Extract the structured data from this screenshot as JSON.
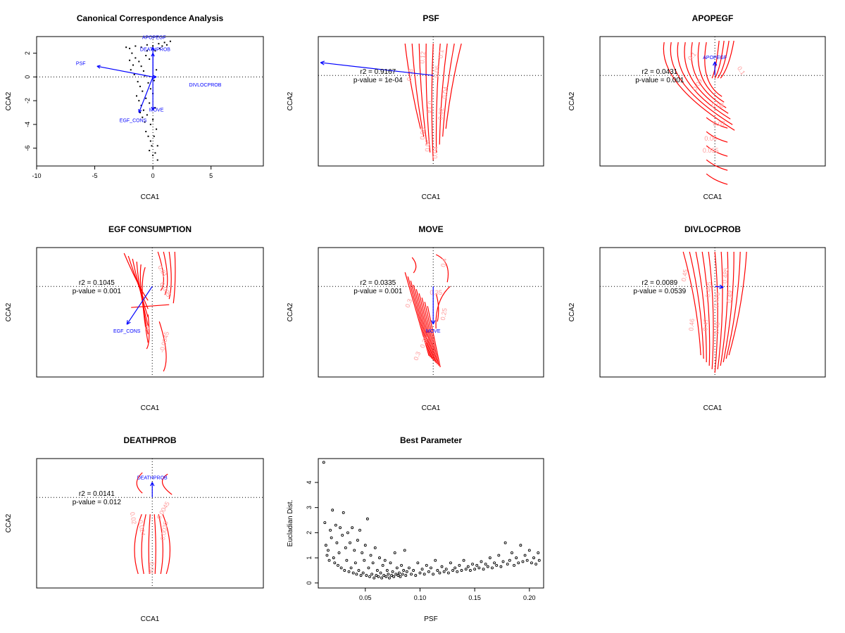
{
  "colors": {
    "vector": "#0000ff",
    "contour": "#ff0000",
    "contour_label": "#ff9999",
    "points": "#000000",
    "axes": "#000000"
  },
  "chart_data": [
    {
      "id": "cca",
      "type": "scatter",
      "title": "Canonical Correspondence Analysis",
      "xlabel": "CCA1",
      "ylabel": "CCA2",
      "xlim": [
        -10,
        9.5
      ],
      "ylim": [
        -7.5,
        3.4
      ],
      "xticks": [
        -10,
        -5,
        0,
        5
      ],
      "yticks": [
        -6,
        -4,
        -2,
        0,
        2
      ],
      "ref_lines": {
        "x": 0,
        "y": 0
      },
      "points": [
        [
          -2.3,
          2.5
        ],
        [
          -2.0,
          2.4
        ],
        [
          -1.5,
          2.6
        ],
        [
          -1.0,
          2.5
        ],
        [
          -0.5,
          2.7
        ],
        [
          0.0,
          2.6
        ],
        [
          0.5,
          2.8
        ],
        [
          1.0,
          2.9
        ],
        [
          1.5,
          3.0
        ],
        [
          -1.8,
          2.0
        ],
        [
          -1.5,
          1.6
        ],
        [
          -1.2,
          1.3
        ],
        [
          -1.0,
          0.9
        ],
        [
          -0.8,
          0.5
        ],
        [
          -0.6,
          1.8
        ],
        [
          -0.3,
          1.5
        ],
        [
          0.2,
          2.2
        ],
        [
          0.6,
          2.4
        ],
        [
          -1.6,
          0.2
        ],
        [
          -1.3,
          -0.4
        ],
        [
          -1.1,
          -0.8
        ],
        [
          -0.9,
          -1.2
        ],
        [
          -0.7,
          0.1
        ],
        [
          -0.4,
          -0.5
        ],
        [
          -0.2,
          -1.0
        ],
        [
          0.1,
          -0.3
        ],
        [
          0.3,
          0.6
        ],
        [
          -1.4,
          -1.6
        ],
        [
          -1.2,
          -2.0
        ],
        [
          -1.0,
          -2.4
        ],
        [
          -0.8,
          -2.8
        ],
        [
          -0.6,
          -1.8
        ],
        [
          -0.3,
          -2.2
        ],
        [
          0.0,
          -1.4
        ],
        [
          0.2,
          -2.6
        ],
        [
          -1.1,
          -3.0
        ],
        [
          -0.9,
          -3.4
        ],
        [
          -0.7,
          -3.8
        ],
        [
          -0.5,
          -3.2
        ],
        [
          -0.2,
          -4.0
        ],
        [
          0.0,
          -3.6
        ],
        [
          0.3,
          -4.4
        ],
        [
          -0.6,
          -4.6
        ],
        [
          -0.4,
          -5.0
        ],
        [
          -0.2,
          -5.4
        ],
        [
          0.1,
          -5.0
        ],
        [
          0.4,
          -5.8
        ],
        [
          -0.3,
          -6.2
        ],
        [
          0.0,
          -6.6
        ],
        [
          0.2,
          -6.4
        ],
        [
          0.4,
          -7.0
        ],
        [
          -0.1,
          -5.8
        ],
        [
          -1.7,
          1.0
        ],
        [
          -2.0,
          1.4
        ],
        [
          -1.9,
          0.6
        ],
        [
          -0.5,
          2.2
        ],
        [
          0.8,
          2.6
        ],
        [
          1.2,
          2.7
        ]
      ],
      "vectors": [
        {
          "label": "APOPEGF",
          "x": 0.0,
          "y": 2.5
        },
        {
          "label": "PSF",
          "x": -4.8,
          "y": 0.9
        },
        {
          "label": "DIVLOCPROB",
          "x": 0.3,
          "y": 0.0
        },
        {
          "label": "EGF_CONS",
          "x": -1.2,
          "y": -3.0
        },
        {
          "label": "MOVE",
          "x": 0.0,
          "y": -2.8
        },
        {
          "label": "DEATHPROB",
          "x": 0.0,
          "y": 2.0
        }
      ],
      "vector_label_positions": {
        "APOPEGF": [
          0.1,
          3.2
        ],
        "PSF": [
          -6.2,
          1.0
        ],
        "DIVLOCPROB": [
          4.5,
          -0.8
        ],
        "EGF_CONS": [
          -1.7,
          -3.8
        ],
        "MOVE": [
          0.3,
          -2.9
        ],
        "DEATHPROB": [
          0.2,
          2.2
        ]
      }
    },
    {
      "id": "psf",
      "type": "contour",
      "title": "PSF",
      "xlabel": "CCA1",
      "ylabel": "CCA2",
      "r2": "r2 = 0.9167",
      "pvalue": "p-value = 1e-04",
      "vector": {
        "x": -5.0,
        "y": 0.95
      },
      "contour_labels": [
        "0.08",
        "0.12",
        "0.1",
        "0.06",
        "0.04",
        "0.02",
        "0.14",
        "0.08",
        "0.06",
        "0.04"
      ]
    },
    {
      "id": "apopegf",
      "type": "contour",
      "title": "APOPEGF",
      "xlabel": "CCA1",
      "ylabel": "CCA2",
      "r2": "r2 = 0.0431",
      "pvalue": "p-value = 0.001",
      "vector": {
        "x": 0.0,
        "y": 1.8,
        "label": "APOPEGF"
      },
      "contour_labels": [
        "0.1",
        "0.1",
        "0.09",
        "0.08",
        "0.07",
        "0.06",
        "0.055"
      ]
    },
    {
      "id": "egf",
      "type": "contour",
      "title": "EGF CONSUMPTION",
      "xlabel": "CCA1",
      "ylabel": "CCA2",
      "r2": "r2 = 0.1045",
      "pvalue": "p-value = 0.001",
      "vector": {
        "x": -1.2,
        "y": -3.0,
        "label": "EGF_CONS"
      },
      "contour_labels": [
        "0.01",
        "0.005",
        "0",
        "-0.0045"
      ]
    },
    {
      "id": "move",
      "type": "contour",
      "title": "MOVE",
      "xlabel": "CCA1",
      "ylabel": "CCA2",
      "r2": "r2 = 0.0335",
      "pvalue": "p-value = 0.001",
      "vector": {
        "x": 0.0,
        "y": -2.8,
        "label": "MOVE"
      },
      "contour_labels": [
        "0.4",
        "0.35",
        "0.3",
        "0.25",
        "0.35",
        "0.3"
      ]
    },
    {
      "id": "divloc",
      "type": "contour",
      "title": "DIVLOCPROB",
      "xlabel": "CCA1",
      "ylabel": "CCA2",
      "r2": "r2 = 0.0089",
      "pvalue": "p-value = 0.0539",
      "vector": {
        "x": 0.6,
        "y": -0.1
      },
      "contour_labels": [
        "0.45",
        "0.465",
        "0.475",
        "0.485",
        "0.49",
        "0.46",
        "0.47",
        "0.48"
      ]
    },
    {
      "id": "death",
      "type": "contour",
      "title": "DEATHPROB",
      "xlabel": "CCA1",
      "ylabel": "CCA2",
      "r2": "r2 = 0.0141",
      "pvalue": "p-value = 0.012",
      "vector": {
        "x": 0.0,
        "y": 2.0,
        "label": "DEATHPROB"
      },
      "contour_labels": [
        "0.02",
        "0.024",
        "0.0045",
        "0.0035",
        "0.04"
      ]
    },
    {
      "id": "best",
      "type": "scatter",
      "title": "Best Parameter",
      "xlabel": "PSF",
      "ylabel": "Eucladian Dist.",
      "xlim": [
        0.007,
        0.213
      ],
      "ylim": [
        -0.2,
        4.95
      ],
      "xticks": [
        0.05,
        0.1,
        0.15,
        0.2
      ],
      "xtick_labels": [
        "0.05",
        "0.10",
        "0.15",
        "0.20"
      ],
      "yticks": [
        0,
        1,
        2,
        3,
        4
      ],
      "points": [
        [
          0.012,
          4.8
        ],
        [
          0.013,
          2.4
        ],
        [
          0.014,
          1.5
        ],
        [
          0.015,
          1.1
        ],
        [
          0.016,
          1.3
        ],
        [
          0.017,
          0.9
        ],
        [
          0.018,
          2.1
        ],
        [
          0.019,
          1.8
        ],
        [
          0.02,
          2.9
        ],
        [
          0.021,
          1.0
        ],
        [
          0.022,
          0.8
        ],
        [
          0.023,
          2.3
        ],
        [
          0.024,
          1.6
        ],
        [
          0.025,
          0.7
        ],
        [
          0.026,
          1.2
        ],
        [
          0.027,
          2.2
        ],
        [
          0.028,
          0.6
        ],
        [
          0.029,
          1.9
        ],
        [
          0.03,
          2.8
        ],
        [
          0.031,
          0.5
        ],
        [
          0.032,
          1.4
        ],
        [
          0.033,
          0.9
        ],
        [
          0.034,
          2.0
        ],
        [
          0.035,
          0.45
        ],
        [
          0.036,
          1.6
        ],
        [
          0.037,
          0.6
        ],
        [
          0.038,
          2.2
        ],
        [
          0.039,
          0.4
        ],
        [
          0.04,
          1.3
        ],
        [
          0.041,
          0.8
        ],
        [
          0.042,
          0.35
        ],
        [
          0.043,
          1.7
        ],
        [
          0.044,
          0.5
        ],
        [
          0.045,
          2.1
        ],
        [
          0.046,
          0.3
        ],
        [
          0.047,
          1.2
        ],
        [
          0.048,
          0.4
        ],
        [
          0.049,
          0.9
        ],
        [
          0.05,
          1.5
        ],
        [
          0.051,
          0.3
        ],
        [
          0.052,
          2.55
        ],
        [
          0.053,
          0.6
        ],
        [
          0.054,
          0.25
        ],
        [
          0.055,
          1.1
        ],
        [
          0.056,
          0.35
        ],
        [
          0.057,
          0.8
        ],
        [
          0.058,
          0.2
        ],
        [
          0.059,
          1.4
        ],
        [
          0.06,
          0.3
        ],
        [
          0.061,
          0.5
        ],
        [
          0.062,
          0.25
        ],
        [
          0.063,
          1.0
        ],
        [
          0.064,
          0.4
        ],
        [
          0.065,
          0.2
        ],
        [
          0.066,
          0.7
        ],
        [
          0.067,
          0.3
        ],
        [
          0.068,
          0.9
        ],
        [
          0.069,
          0.25
        ],
        [
          0.07,
          0.5
        ],
        [
          0.071,
          0.35
        ],
        [
          0.072,
          0.2
        ],
        [
          0.073,
          0.8
        ],
        [
          0.074,
          0.3
        ],
        [
          0.075,
          0.45
        ],
        [
          0.076,
          0.25
        ],
        [
          0.077,
          1.2
        ],
        [
          0.078,
          0.35
        ],
        [
          0.079,
          0.6
        ],
        [
          0.08,
          0.3
        ],
        [
          0.081,
          0.4
        ],
        [
          0.082,
          0.25
        ],
        [
          0.083,
          0.7
        ],
        [
          0.084,
          0.35
        ],
        [
          0.085,
          0.5
        ],
        [
          0.086,
          1.3
        ],
        [
          0.087,
          0.3
        ],
        [
          0.088,
          0.45
        ],
        [
          0.09,
          0.6
        ],
        [
          0.092,
          0.35
        ],
        [
          0.094,
          0.5
        ],
        [
          0.096,
          0.3
        ],
        [
          0.098,
          0.8
        ],
        [
          0.1,
          0.4
        ],
        [
          0.102,
          0.55
        ],
        [
          0.104,
          0.35
        ],
        [
          0.106,
          0.7
        ],
        [
          0.108,
          0.45
        ],
        [
          0.11,
          0.6
        ],
        [
          0.112,
          0.35
        ],
        [
          0.114,
          0.9
        ],
        [
          0.116,
          0.5
        ],
        [
          0.118,
          0.4
        ],
        [
          0.12,
          0.65
        ],
        [
          0.122,
          0.45
        ],
        [
          0.124,
          0.55
        ],
        [
          0.126,
          0.4
        ],
        [
          0.128,
          0.8
        ],
        [
          0.13,
          0.5
        ],
        [
          0.132,
          0.6
        ],
        [
          0.134,
          0.45
        ],
        [
          0.136,
          0.7
        ],
        [
          0.138,
          0.5
        ],
        [
          0.14,
          0.9
        ],
        [
          0.142,
          0.55
        ],
        [
          0.144,
          0.65
        ],
        [
          0.146,
          0.5
        ],
        [
          0.148,
          0.75
        ],
        [
          0.15,
          0.55
        ],
        [
          0.152,
          0.7
        ],
        [
          0.154,
          0.6
        ],
        [
          0.156,
          0.85
        ],
        [
          0.158,
          0.55
        ],
        [
          0.16,
          0.75
        ],
        [
          0.162,
          0.65
        ],
        [
          0.164,
          1.0
        ],
        [
          0.166,
          0.6
        ],
        [
          0.168,
          0.8
        ],
        [
          0.17,
          0.7
        ],
        [
          0.172,
          1.1
        ],
        [
          0.174,
          0.65
        ],
        [
          0.176,
          0.85
        ],
        [
          0.178,
          1.6
        ],
        [
          0.18,
          0.75
        ],
        [
          0.182,
          0.9
        ],
        [
          0.184,
          1.2
        ],
        [
          0.186,
          0.7
        ],
        [
          0.188,
          1.0
        ],
        [
          0.19,
          0.8
        ],
        [
          0.192,
          1.5
        ],
        [
          0.194,
          0.85
        ],
        [
          0.196,
          1.1
        ],
        [
          0.198,
          0.9
        ],
        [
          0.2,
          1.3
        ],
        [
          0.202,
          0.8
        ],
        [
          0.204,
          1.0
        ],
        [
          0.206,
          0.75
        ],
        [
          0.208,
          1.2
        ],
        [
          0.209,
          0.9
        ]
      ]
    }
  ]
}
